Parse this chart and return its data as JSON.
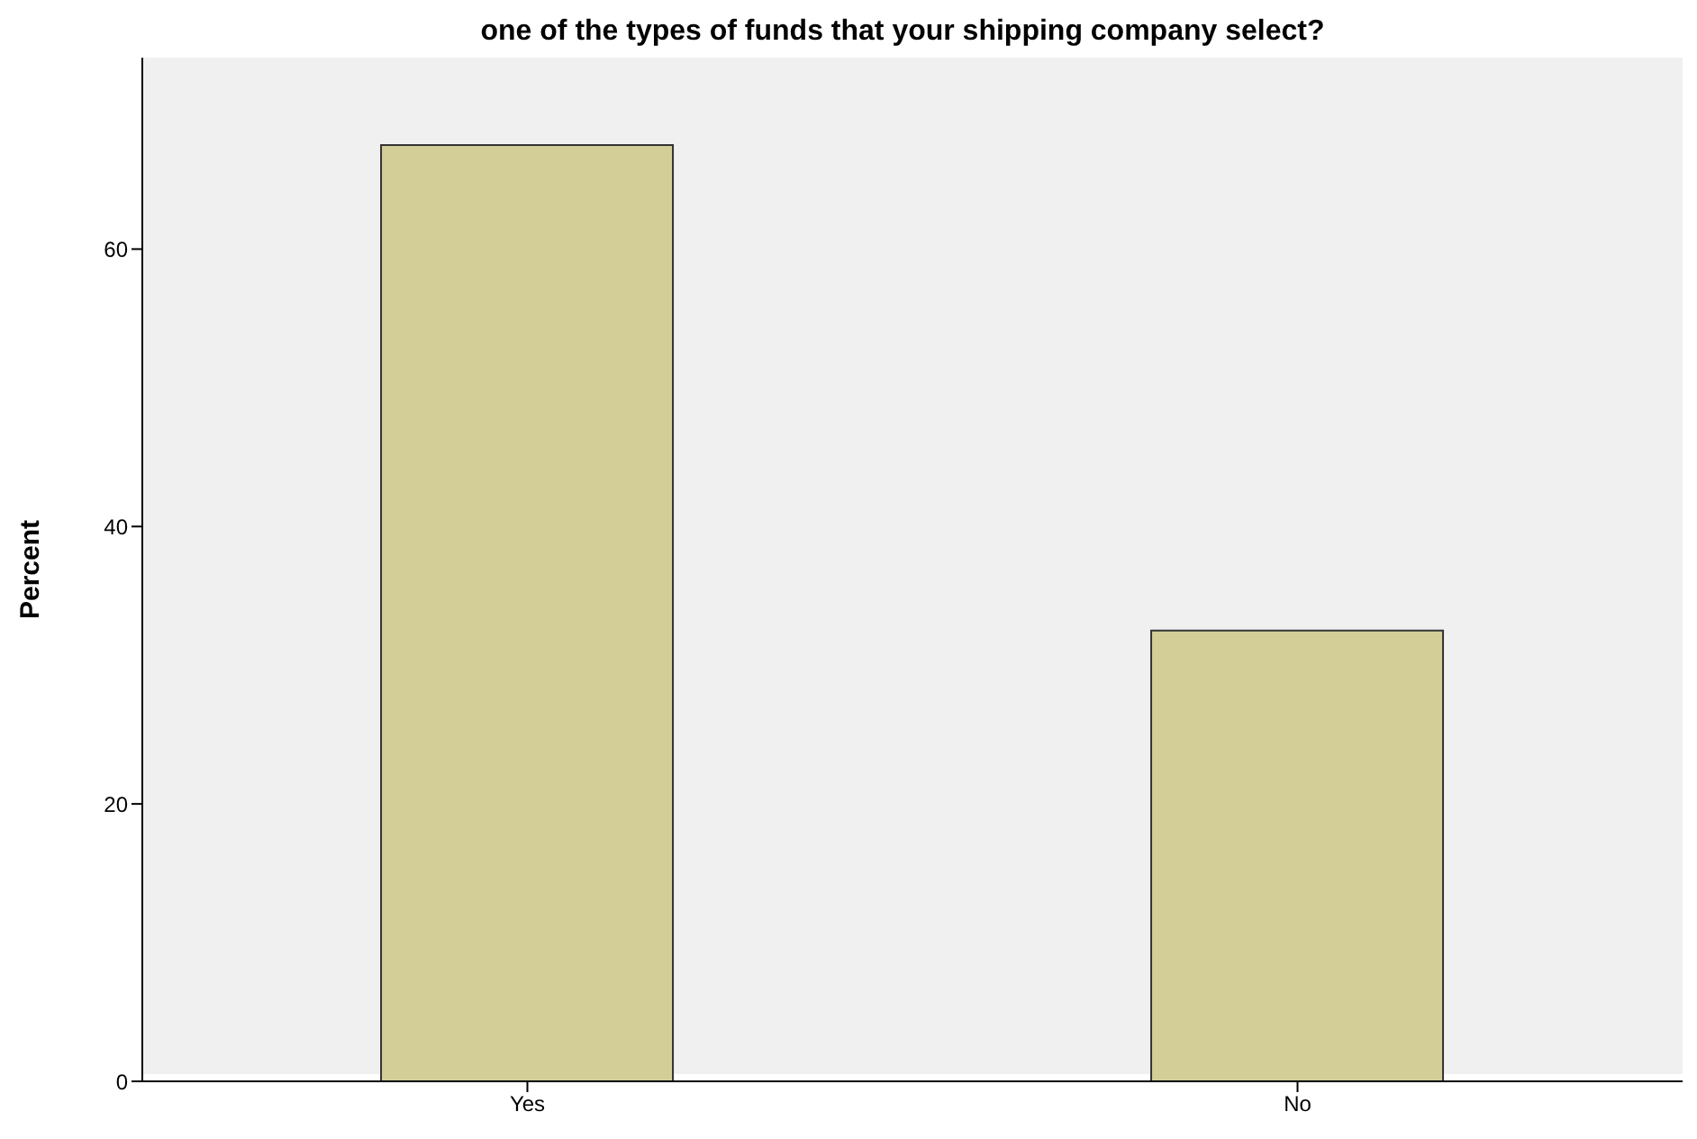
{
  "chart_data": {
    "type": "bar",
    "title": "one of the types of funds that your shipping company select?",
    "ylabel": "Percent",
    "categories": [
      "Yes",
      "No"
    ],
    "values": [
      67.5,
      32.5
    ],
    "color": "#d3ce97",
    "ylim": [
      0,
      73.8
    ],
    "yticks": [
      0,
      20,
      40,
      60
    ],
    "grid": false
  }
}
